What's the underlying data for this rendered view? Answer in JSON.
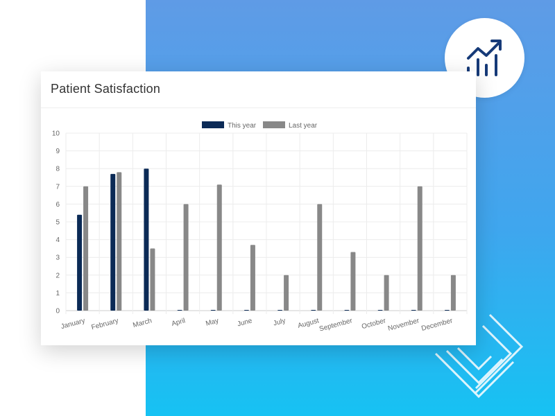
{
  "card": {
    "title": "Patient Satisfaction"
  },
  "badge": {
    "icon": "trend-chart-icon"
  },
  "colors": {
    "this_year": "#0b2a56",
    "last_year": "#888888",
    "accent_bg": "#3fa6ee"
  },
  "chart_data": {
    "type": "bar",
    "title": "Patient Satisfaction",
    "categories": [
      "January",
      "February",
      "March",
      "April",
      "May",
      "June",
      "July",
      "August",
      "September",
      "October",
      "November",
      "December"
    ],
    "series": [
      {
        "name": "This year",
        "values": [
          5.4,
          7.7,
          8.0,
          0,
          0,
          0,
          0,
          0,
          0,
          0,
          0,
          0
        ]
      },
      {
        "name": "Last year",
        "values": [
          7.0,
          7.8,
          3.5,
          6.0,
          7.1,
          3.7,
          2.0,
          6.0,
          3.3,
          2.0,
          7.0,
          2.0
        ]
      }
    ],
    "xlabel": "",
    "ylabel": "",
    "ylim": [
      0,
      10
    ],
    "yticks": [
      "0",
      "1",
      "2",
      "3",
      "4",
      "5",
      "6",
      "7",
      "8",
      "9",
      "10"
    ],
    "grid": true,
    "legend": "top-center"
  }
}
